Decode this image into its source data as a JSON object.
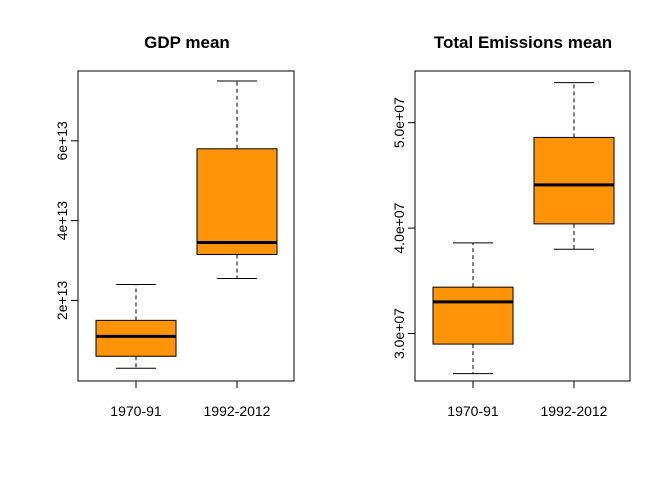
{
  "chart_data": [
    {
      "type": "box",
      "title": "GDP mean",
      "categories": [
        "1970-91",
        "1992-2012"
      ],
      "yticks": [
        20000000000000.0,
        40000000000000.0,
        60000000000000.0
      ],
      "ytick_labels": [
        "2e+13",
        "4e+13",
        "6e+13"
      ],
      "ylim": [
        -200000000000.0,
        77500000000000.0
      ],
      "boxes": [
        {
          "category": "1970-91",
          "whisker_low": 3000000000000.0,
          "q1": 6000000000000.0,
          "median": 11000000000000.0,
          "q3": 15000000000000.0,
          "whisker_high": 24000000000000.0
        },
        {
          "category": "1992-2012",
          "whisker_low": 25500000000000.0,
          "q1": 31500000000000.0,
          "median": 34500000000000.0,
          "q3": 58000000000000.0,
          "whisker_high": 75000000000000.0
        }
      ],
      "fill": "#ff9408"
    },
    {
      "type": "box",
      "title": "Total Emissions mean",
      "categories": [
        "1970-91",
        "1992-2012"
      ],
      "yticks": [
        30000000.0,
        40000000.0,
        50000000.0
      ],
      "ytick_labels": [
        "3.0e+07",
        "4.0e+07",
        "5.0e+07"
      ],
      "ylim": [
        25500000.0,
        54900000.0
      ],
      "boxes": [
        {
          "category": "1970-91",
          "whisker_low": 26200000.0,
          "q1": 29000000.0,
          "median": 33000000.0,
          "q3": 34400000.0,
          "whisker_high": 38600000.0
        },
        {
          "category": "1992-2012",
          "whisker_low": 38000000.0,
          "q1": 40400000.0,
          "median": 44100000.0,
          "q3": 48600000.0,
          "whisker_high": 53800000.0
        }
      ],
      "fill": "#ff9408"
    }
  ]
}
